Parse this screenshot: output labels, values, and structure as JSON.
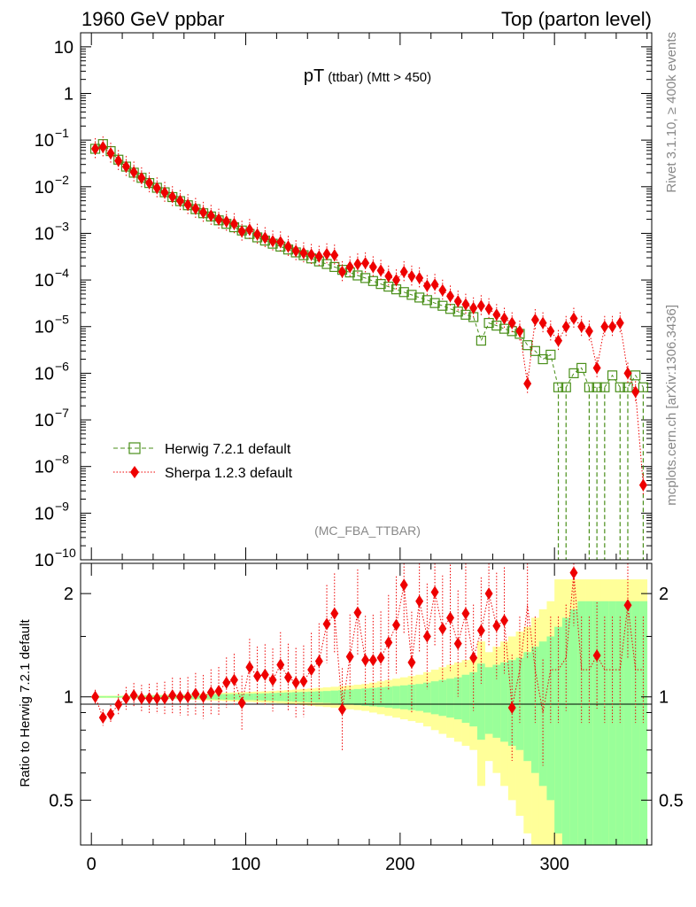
{
  "header": {
    "left_title": "1960 GeV ppbar",
    "right_title": "Top (parton level)"
  },
  "side_labels": {
    "rivet": "Rivet 3.1.10, ≥ 400k events",
    "source": "mcplots.cern.ch [arXiv:1306.3436]"
  },
  "colors": {
    "herwig": "#4a8f1a",
    "sherpa": "#ee0000",
    "band_inner": "#99ff99",
    "band_outer": "#ffff99"
  },
  "chart_data": [
    {
      "type": "scatter",
      "panel": "main",
      "title": "pT",
      "title_sub": "(ttbar)",
      "title_cut": "(Mtt > 450)",
      "watermark": "(MC_FBA_TTBAR)",
      "yscale": "log",
      "xlim": [
        -7,
        363
      ],
      "ylim": [
        1e-10,
        20
      ],
      "ytick_labels": [
        {
          "base": "10",
          "exp": "",
          "value": 10
        },
        {
          "base": "1",
          "exp": "",
          "value": 1
        },
        {
          "base": "10",
          "exp": "−1",
          "value": 0.1
        },
        {
          "base": "10",
          "exp": "−2",
          "value": 0.01
        },
        {
          "base": "10",
          "exp": "−3",
          "value": 0.001
        },
        {
          "base": "10",
          "exp": "−4",
          "value": 0.0001
        },
        {
          "base": "10",
          "exp": "−5",
          "value": 1e-05
        },
        {
          "base": "10",
          "exp": "−6",
          "value": 1e-06
        },
        {
          "base": "10",
          "exp": "−7",
          "value": 1e-07
        },
        {
          "base": "10",
          "exp": "−8",
          "value": 1e-08
        },
        {
          "base": "10",
          "exp": "−9",
          "value": 1e-09
        },
        {
          "base": "10",
          "exp": "−10",
          "value": 1e-10
        }
      ],
      "legend_position": "lower-left",
      "series": [
        {
          "name": "Herwig 7.2.1 default",
          "marker": "open-square",
          "line": "dashed",
          "x": [
            2.5,
            7.5,
            12.5,
            17.5,
            22.5,
            27.5,
            32.5,
            37.5,
            42.5,
            47.5,
            52.5,
            57.5,
            62.5,
            67.5,
            72.5,
            77.5,
            82.5,
            87.5,
            92.5,
            97.5,
            102.5,
            107.5,
            112.5,
            117.5,
            122.5,
            127.5,
            132.5,
            137.5,
            142.5,
            147.5,
            152.5,
            157.5,
            162.5,
            167.5,
            172.5,
            177.5,
            182.5,
            187.5,
            192.5,
            197.5,
            202.5,
            207.5,
            212.5,
            217.5,
            222.5,
            227.5,
            232.5,
            237.5,
            242.5,
            247.5,
            252.5,
            257.5,
            262.5,
            267.5,
            272.5,
            277.5,
            282.5,
            287.5,
            292.5,
            297.5,
            302.5,
            307.5,
            312.5,
            317.5,
            322.5,
            327.5,
            332.5,
            337.5,
            342.5,
            347.5,
            352.5,
            357.5
          ],
          "y": [
            0.065,
            0.082,
            0.058,
            0.038,
            0.027,
            0.02,
            0.0155,
            0.012,
            0.0095,
            0.0076,
            0.006,
            0.0049,
            0.004,
            0.0033,
            0.0027,
            0.0023,
            0.0019,
            0.0016,
            0.00135,
            0.00115,
            0.00097,
            0.00082,
            0.0007,
            0.0006,
            0.00052,
            0.00045,
            0.00039,
            0.00034,
            0.00029,
            0.00025,
            0.00022,
            0.00019,
            0.000165,
            0.000145,
            0.000125,
            0.00011,
            9.5e-05,
            8.2e-05,
            7.2e-05,
            6.3e-05,
            5.5e-05,
            4.8e-05,
            4.2e-05,
            3.7e-05,
            3.2e-05,
            2.8e-05,
            2.4e-05,
            2.1e-05,
            1.8e-05,
            1.6e-05,
            5e-06,
            1.2e-05,
            1.05e-05,
            9e-06,
            8e-06,
            7e-06,
            4e-06,
            3e-06,
            2e-06,
            2.5e-06,
            5e-07,
            5e-07,
            1e-06,
            1.3e-06,
            5e-07,
            5e-07,
            5e-07,
            9e-07,
            5e-07,
            5e-07,
            9e-07,
            5e-07
          ]
        },
        {
          "name": "Sherpa 1.2.3 default",
          "marker": "diamond",
          "line": "dotted",
          "x": [
            2.5,
            7.5,
            12.5,
            17.5,
            22.5,
            27.5,
            32.5,
            37.5,
            42.5,
            47.5,
            52.5,
            57.5,
            62.5,
            67.5,
            72.5,
            77.5,
            82.5,
            87.5,
            92.5,
            97.5,
            102.5,
            107.5,
            112.5,
            117.5,
            122.5,
            127.5,
            132.5,
            137.5,
            142.5,
            147.5,
            152.5,
            157.5,
            162.5,
            167.5,
            172.5,
            177.5,
            182.5,
            187.5,
            192.5,
            197.5,
            202.5,
            207.5,
            212.5,
            217.5,
            222.5,
            227.5,
            232.5,
            237.5,
            242.5,
            247.5,
            252.5,
            257.5,
            262.5,
            267.5,
            272.5,
            277.5,
            282.5,
            287.5,
            292.5,
            297.5,
            302.5,
            307.5,
            312.5,
            317.5,
            322.5,
            327.5,
            332.5,
            337.5,
            342.5,
            347.5,
            352.5,
            357.5
          ],
          "y": [
            0.065,
            0.071,
            0.052,
            0.036,
            0.027,
            0.0205,
            0.0154,
            0.012,
            0.0094,
            0.0075,
            0.0061,
            0.005,
            0.0041,
            0.0034,
            0.0028,
            0.0024,
            0.002,
            0.0018,
            0.0016,
            0.0011,
            0.0012,
            0.00095,
            0.0008,
            0.00068,
            0.00065,
            0.00052,
            0.00042,
            0.00038,
            0.00035,
            0.00032,
            0.00036,
            0.00034,
            0.00015,
            0.00019,
            0.00022,
            0.00023,
            0.00019,
            0.00016,
            0.00012,
            0.0001,
            0.00015,
            0.00012,
            0.00011,
            7.5e-05,
            8e-05,
            6e-05,
            4.5e-05,
            3.5e-05,
            3e-05,
            2.5e-05,
            2.8e-05,
            2.4e-05,
            1.8e-05,
            1.5e-05,
            1.2e-05,
            8e-06,
            6e-07,
            1.4e-05,
            1.2e-05,
            8e-06,
            5e-06,
            1e-05,
            1.5e-05,
            1e-05,
            8e-06,
            1.3e-06,
            1e-05,
            1e-05,
            1.2e-05,
            1e-06,
            4e-07,
            4e-09
          ]
        }
      ]
    },
    {
      "type": "scatter",
      "panel": "ratio",
      "ylabel": "Ratio to Herwig 7.2.1 default",
      "yscale": "log",
      "xlim": [
        -7,
        363
      ],
      "ylim": [
        0.37,
        2.45
      ],
      "ytick_labels": [
        {
          "label": "2",
          "value": 2
        },
        {
          "label": "1",
          "value": 1
        },
        {
          "label": "0.5",
          "value": 0.5
        }
      ],
      "xtick_labels": [
        {
          "label": "0",
          "value": 0
        },
        {
          "label": "100",
          "value": 100
        },
        {
          "label": "200",
          "value": 200
        },
        {
          "label": "300",
          "value": 300
        }
      ],
      "band_inner": [
        0.005,
        0.005,
        0.005,
        0.005,
        0.006,
        0.007,
        0.008,
        0.009,
        0.01,
        0.011,
        0.012,
        0.013,
        0.014,
        0.015,
        0.016,
        0.017,
        0.018,
        0.019,
        0.02,
        0.021,
        0.022,
        0.023,
        0.024,
        0.026,
        0.028,
        0.03,
        0.032,
        0.034,
        0.036,
        0.038,
        0.04,
        0.043,
        0.046,
        0.05,
        0.054,
        0.058,
        0.062,
        0.066,
        0.07,
        0.075,
        0.08,
        0.085,
        0.09,
        0.1,
        0.11,
        0.12,
        0.13,
        0.14,
        0.16,
        0.18,
        0.25,
        0.22,
        0.24,
        0.26,
        0.28,
        0.3,
        0.35,
        0.4,
        0.45,
        0.5,
        0.6,
        0.7,
        0.8,
        0.9,
        0.9,
        0.9,
        0.9,
        0.9,
        0.9,
        0.9,
        0.9,
        0.9
      ],
      "band_outer": [
        0.008,
        0.008,
        0.008,
        0.008,
        0.009,
        0.01,
        0.011,
        0.012,
        0.013,
        0.014,
        0.015,
        0.016,
        0.018,
        0.02,
        0.022,
        0.024,
        0.026,
        0.028,
        0.03,
        0.032,
        0.034,
        0.036,
        0.038,
        0.04,
        0.043,
        0.046,
        0.05,
        0.054,
        0.058,
        0.062,
        0.066,
        0.07,
        0.075,
        0.08,
        0.085,
        0.09,
        0.1,
        0.11,
        0.12,
        0.13,
        0.14,
        0.15,
        0.16,
        0.18,
        0.2,
        0.22,
        0.24,
        0.26,
        0.28,
        0.3,
        0.45,
        0.35,
        0.4,
        0.45,
        0.5,
        0.55,
        0.6,
        0.7,
        0.8,
        0.9,
        1.2,
        1.2,
        1.2,
        1.2,
        1.2,
        1.2,
        1.2,
        1.2,
        1.2,
        1.2,
        1.2,
        1.2
      ],
      "series": [
        {
          "name": "Sherpa 1.2.3 default",
          "x": [
            2.5,
            7.5,
            12.5,
            17.5,
            22.5,
            27.5,
            32.5,
            37.5,
            42.5,
            47.5,
            52.5,
            57.5,
            62.5,
            67.5,
            72.5,
            77.5,
            82.5,
            87.5,
            92.5,
            97.5,
            102.5,
            107.5,
            112.5,
            117.5,
            122.5,
            127.5,
            132.5,
            137.5,
            142.5,
            147.5,
            152.5,
            157.5,
            162.5,
            167.5,
            172.5,
            177.5,
            182.5,
            187.5,
            192.5,
            197.5,
            202.5,
            207.5,
            212.5,
            217.5,
            222.5,
            227.5,
            232.5,
            237.5,
            242.5,
            247.5,
            252.5,
            257.5,
            262.5,
            267.5,
            272.5,
            277.5,
            282.5,
            287.5,
            292.5,
            297.5,
            302.5,
            307.5,
            312.5,
            317.5,
            322.5,
            327.5,
            332.5,
            337.5,
            342.5,
            347.5,
            352.5,
            357.5
          ],
          "y": [
            1.0,
            0.87,
            0.89,
            0.95,
            0.99,
            1.01,
            0.99,
            0.99,
            0.99,
            0.99,
            1.01,
            1.0,
            1.0,
            1.02,
            1.0,
            1.03,
            1.04,
            1.1,
            1.12,
            0.96,
            1.22,
            1.15,
            1.16,
            1.12,
            1.24,
            1.14,
            1.1,
            1.11,
            1.2,
            1.27,
            1.63,
            1.75,
            0.92,
            1.31,
            1.76,
            1.28,
            1.28,
            1.3,
            1.44,
            1.62,
            2.12,
            1.26,
            1.9,
            1.5,
            2.02,
            1.58,
            1.7,
            1.43,
            1.75,
            1.3,
            1.56,
            2.0,
            1.61,
            1.67,
            0.93,
            1.2,
            1.85,
            1.2,
            0.9,
            1.2,
            1.2,
            1.3,
            2.3,
            1.2,
            1.2,
            1.32,
            1.2,
            1.2,
            1.2,
            1.85,
            1.2,
            1.2
          ],
          "visible": [
            true,
            true,
            true,
            true,
            true,
            true,
            true,
            true,
            true,
            true,
            true,
            true,
            true,
            true,
            true,
            true,
            true,
            true,
            true,
            true,
            true,
            true,
            true,
            true,
            true,
            true,
            true,
            true,
            true,
            true,
            true,
            true,
            true,
            true,
            true,
            true,
            true,
            true,
            true,
            true,
            true,
            true,
            true,
            true,
            true,
            true,
            true,
            true,
            true,
            true,
            true,
            true,
            true,
            true,
            true,
            false,
            false,
            false,
            false,
            false,
            false,
            false,
            true,
            false,
            false,
            true,
            false,
            false,
            false,
            true,
            false,
            false
          ]
        }
      ]
    }
  ]
}
